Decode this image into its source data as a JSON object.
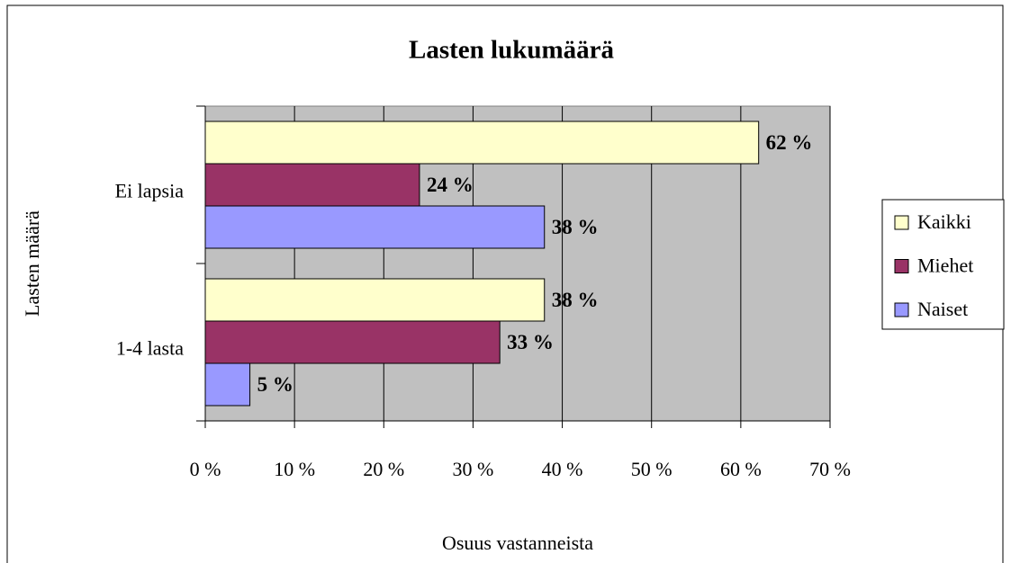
{
  "chart_data": {
    "type": "hbar",
    "title": "Lasten lukumäärä",
    "x_label": "Osuus vastanneista",
    "y_label": "Lasten määrä",
    "categories": [
      "Ei lapsia",
      "1-4 lasta"
    ],
    "series": [
      {
        "name": "Kaikki",
        "color": "#ffffcc",
        "values": [
          62,
          38
        ],
        "value_labels": [
          "62 %",
          "38 %"
        ]
      },
      {
        "name": "Miehet",
        "color": "#993366",
        "values": [
          24,
          33
        ],
        "value_labels": [
          "24 %",
          "33 %"
        ]
      },
      {
        "name": "Naiset",
        "color": "#9999ff",
        "values": [
          38,
          5
        ],
        "value_labels": [
          "38 %",
          "5 %"
        ]
      }
    ],
    "xlim": [
      0,
      70
    ],
    "xticks": [
      {
        "value": 0,
        "label": "0 %"
      },
      {
        "value": 10,
        "label": "10 %"
      },
      {
        "value": 20,
        "label": "20 %"
      },
      {
        "value": 30,
        "label": "30 %"
      },
      {
        "value": 40,
        "label": "40 %"
      },
      {
        "value": 50,
        "label": "50 %"
      },
      {
        "value": 60,
        "label": "60 %"
      },
      {
        "value": 70,
        "label": "70 %"
      }
    ],
    "grid": true,
    "legend": "right"
  }
}
